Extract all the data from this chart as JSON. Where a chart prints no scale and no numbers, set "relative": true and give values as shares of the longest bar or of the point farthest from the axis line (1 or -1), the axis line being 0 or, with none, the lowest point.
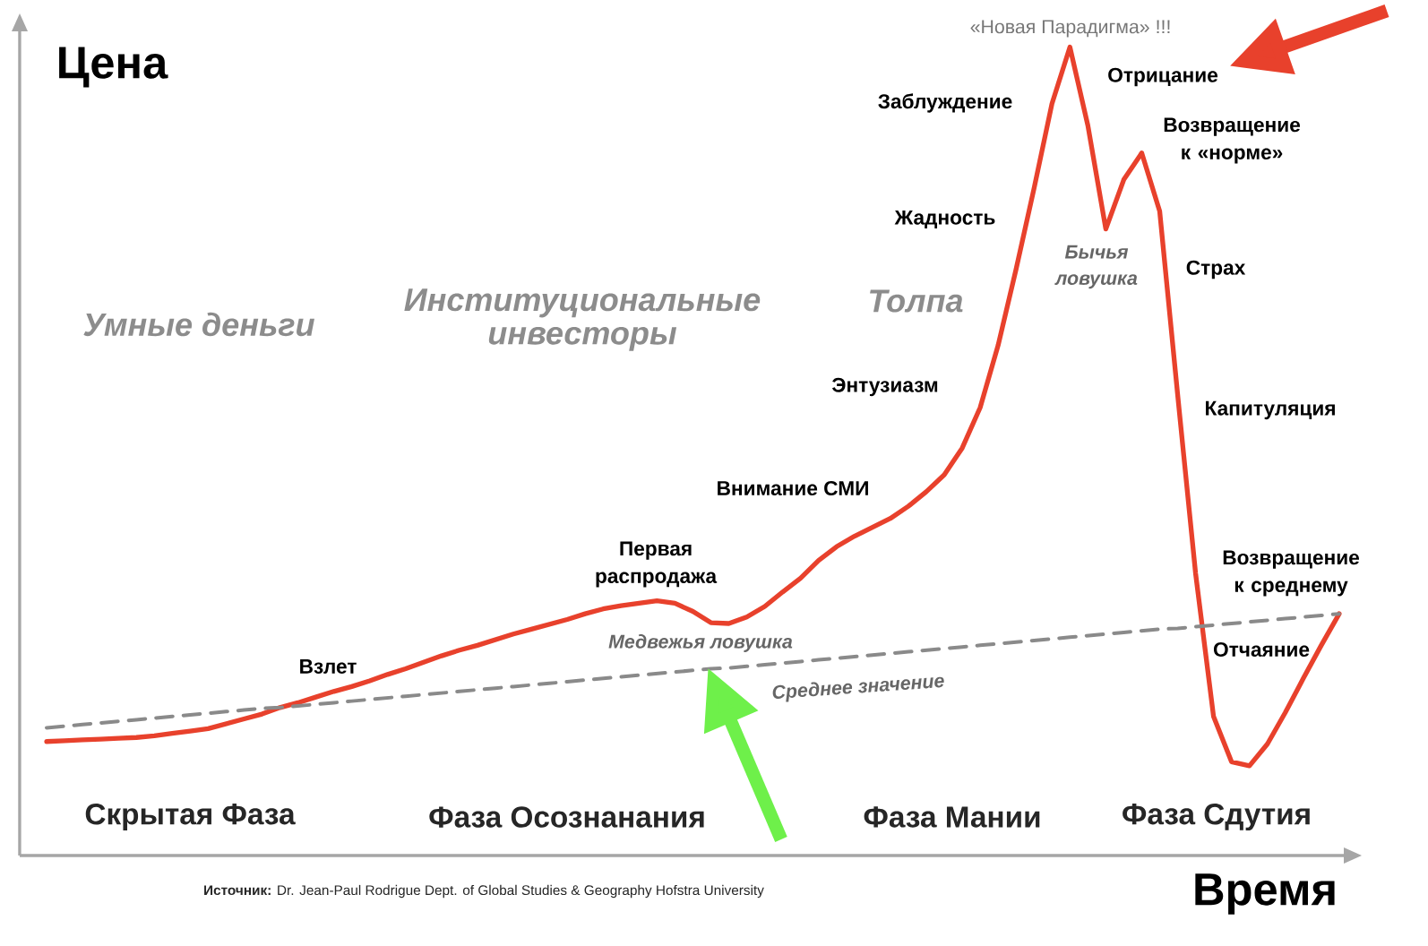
{
  "chart_data": {
    "type": "line",
    "relative": true,
    "xlabel": "Время",
    "ylabel": "Цена",
    "categories": [
      null,
      null,
      null,
      null,
      null,
      null,
      null,
      null,
      null,
      null,
      null,
      null,
      null,
      null,
      null,
      null,
      null,
      null,
      null,
      null,
      null,
      null,
      null,
      null,
      null,
      null,
      null,
      null,
      null,
      null,
      null,
      null,
      null,
      null,
      null,
      null,
      null,
      null,
      null,
      null,
      null,
      null,
      null,
      null,
      null,
      null,
      null,
      null,
      null,
      null,
      null,
      null,
      null,
      null,
      null,
      null,
      null,
      null,
      null,
      null,
      null,
      null,
      null,
      null,
      null,
      null,
      null,
      null,
      null,
      null,
      null,
      null,
      null
    ],
    "series": [
      {
        "color": "#e8412c",
        "line_style": "solid",
        "values": [
          0.141,
          0.142,
          0.143,
          0.144,
          0.145,
          0.146,
          0.148,
          0.151,
          0.154,
          0.157,
          0.163,
          0.169,
          0.175,
          0.183,
          0.189,
          0.196,
          0.203,
          0.209,
          0.216,
          0.224,
          0.231,
          0.239,
          0.247,
          0.254,
          0.26,
          0.267,
          0.274,
          0.28,
          0.286,
          0.292,
          0.299,
          0.305,
          0.309,
          0.312,
          0.315,
          0.312,
          0.302,
          0.288,
          0.287,
          0.295,
          0.308,
          0.326,
          0.343,
          0.365,
          0.382,
          0.395,
          0.406,
          0.417,
          0.432,
          0.45,
          0.471,
          0.504,
          0.554,
          0.631,
          0.725,
          0.825,
          0.93,
          1,
          0.903,
          0.775,
          0.836,
          0.869,
          0.797,
          0.57,
          0.349,
          0.172,
          0.116,
          0.111,
          0.138,
          0.177,
          0.219,
          0.26,
          0.299
        ]
      },
      {
        "color": "#8a8a8a",
        "line_style": "dashed",
        "values": [
          0.158,
          0.16,
          0.162,
          0.164,
          0.166,
          0.168,
          0.17,
          0.172,
          0.174,
          0.176,
          0.178,
          0.18,
          0.182,
          0.183,
          0.185,
          0.187,
          0.189,
          0.191,
          0.193,
          0.195,
          0.197,
          0.199,
          0.201,
          0.203,
          0.205,
          0.207,
          0.209,
          0.211,
          0.213,
          0.215,
          0.217,
          0.219,
          0.221,
          0.223,
          0.225,
          0.227,
          0.229,
          0.231,
          0.232,
          0.234,
          0.236,
          0.238,
          0.24,
          0.242,
          0.244,
          0.246,
          0.248,
          0.25,
          0.252,
          0.254,
          0.256,
          0.258,
          0.26,
          0.262,
          0.264,
          0.266,
          0.268,
          0.27,
          0.272,
          0.274,
          0.276,
          0.278,
          0.28,
          0.281,
          0.283,
          0.285,
          0.287,
          0.289,
          0.291,
          0.293,
          0.295,
          0.297,
          0.299
        ]
      }
    ],
    "annotations": [
      "«Новая Парадигма» !!!",
      "Отрицание",
      "Заблуждение",
      "Возвращение к «норме»",
      "Жадность",
      "Бычья ловушка",
      "Страх",
      "Умные деньги",
      "Институциональные инвесторы",
      "Толпа",
      "Энтузиазм",
      "Капитуляция",
      "Внимание СМИ",
      "Первая распродажа",
      "Возвращение к среднему",
      "Медвежья ловушка",
      "Отчаяние",
      "Взлет",
      "Среднее значение",
      "Скрытая Фаза",
      "Фаза Осознанания",
      "Фаза Мании",
      "Фаза Сдутия",
      "**Источник:** Dr. Jean-Paul Rodrigue Dept. of Global Studies & Geography Hofstra University"
    ]
  }
}
